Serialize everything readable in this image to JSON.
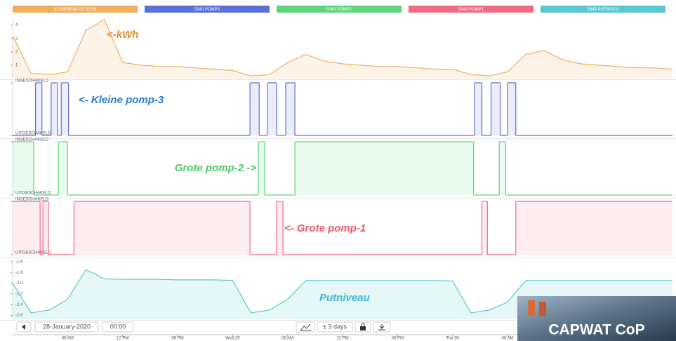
{
  "chart_data": [
    {
      "type": "line",
      "name": "871685900013270256",
      "color": "#f0ad5e",
      "annotation": "<-kWh",
      "annotation_color": "#f08a24",
      "x": [
        0,
        2,
        4,
        6,
        8,
        10,
        12,
        14,
        16,
        18,
        20,
        22,
        24,
        26,
        28,
        30,
        32,
        34,
        36,
        38,
        40,
        42,
        44,
        46,
        48,
        50,
        52,
        54,
        56,
        58,
        60,
        62,
        64,
        66,
        68,
        70,
        72
      ],
      "values": [
        3.2,
        0.4,
        0.3,
        0.5,
        3.6,
        4.4,
        1.2,
        1.0,
        0.9,
        0.9,
        0.8,
        0.7,
        0.6,
        0.2,
        0.3,
        1.2,
        1.8,
        1.3,
        1.1,
        1.0,
        0.9,
        0.9,
        0.8,
        0.7,
        0.7,
        0.3,
        0.2,
        0.5,
        1.8,
        2.1,
        1.4,
        1.1,
        1.0,
        0.9,
        0.8,
        0.8,
        0.7
      ],
      "xlim": [
        0,
        72
      ],
      "ylim": [
        0,
        4.4
      ],
      "yticks": [
        1,
        2,
        3,
        4
      ]
    },
    {
      "type": "step",
      "name": "5043 POMP3",
      "color": "#5b6fd6",
      "annotation": "<- Kleine pomp-3",
      "annotation_color": "#2b7bd6",
      "x": [
        0,
        2.5,
        3.2,
        4.2,
        4.9,
        5.3,
        6.1,
        25.9,
        26.9,
        27.8,
        28.8,
        29.8,
        30.8,
        50.4,
        51.2,
        52.2,
        53.2,
        54.0,
        54.9
      ],
      "values": [
        0,
        1,
        0,
        1,
        0,
        1,
        0,
        1,
        0,
        1,
        0,
        1,
        0,
        1,
        0,
        1,
        0,
        1,
        0
      ],
      "xlim": [
        0,
        72
      ],
      "ylim": [
        0,
        1
      ],
      "yticks": [
        {
          "value": 1,
          "label": "INGESCHAKELD"
        },
        {
          "value": 0,
          "label": "UITGESCHAKELD"
        }
      ]
    },
    {
      "type": "step",
      "name": "5043 POMP2",
      "color": "#5dd67a",
      "annotation": "Grote pomp-2 ->",
      "annotation_color": "#4cc96a",
      "x": [
        0,
        2.3,
        5.0,
        6.0,
        26.8,
        27.5,
        30.8,
        50.3,
        53.1,
        53.8
      ],
      "values": [
        1,
        0,
        1,
        0,
        1,
        0,
        1,
        0,
        1,
        0
      ],
      "xlim": [
        0,
        72
      ],
      "ylim": [
        0,
        1
      ],
      "yticks": [
        {
          "value": 1,
          "label": "INGESCHAKELD"
        },
        {
          "value": 0,
          "label": "UITGESCHAKELD"
        }
      ]
    },
    {
      "type": "step",
      "name": "5043 POMP1",
      "color": "#f06a80",
      "annotation": "<- Grote pomp-1",
      "annotation_color": "#e85a6a",
      "x": [
        0,
        3.0,
        3.3,
        3.9,
        6.7,
        25.9,
        28.8,
        29.5,
        51.2,
        51.8,
        54.9
      ],
      "values": [
        1,
        0,
        1,
        0,
        1,
        0,
        1,
        0,
        1,
        0,
        1
      ],
      "xlim": [
        0,
        72
      ],
      "ylim": [
        0,
        1
      ],
      "yticks": [
        {
          "value": 1,
          "label": "INGESCHAKELD"
        },
        {
          "value": 0,
          "label": "UITGESCHAKELD"
        }
      ]
    },
    {
      "type": "line",
      "name": "5043 PUTNIVO1",
      "color": "#5ac8d0",
      "annotation": "Putniveau",
      "annotation_color": "#3bb5d9",
      "x": [
        0,
        2,
        4,
        6,
        8,
        10,
        12,
        14,
        16,
        18,
        20,
        22,
        24,
        26,
        28,
        30,
        32,
        34,
        36,
        38,
        40,
        42,
        44,
        46,
        48,
        50,
        52,
        54,
        56,
        58,
        60,
        62,
        64,
        66,
        68,
        70,
        72
      ],
      "values": [
        -2.0,
        -2.55,
        -2.5,
        -2.3,
        -1.75,
        -1.92,
        -1.93,
        -1.93,
        -1.93,
        -1.94,
        -1.94,
        -1.94,
        -1.95,
        -2.55,
        -2.5,
        -2.3,
        -1.95,
        -1.95,
        -1.95,
        -1.95,
        -1.95,
        -1.95,
        -1.95,
        -1.95,
        -1.96,
        -2.55,
        -2.5,
        -2.35,
        -1.95,
        -1.95,
        -1.95,
        -1.95,
        -1.95,
        -1.95,
        -1.95,
        -1.95,
        -1.95
      ],
      "xlim": [
        0,
        72
      ],
      "ylim": [
        -2.67,
        -1.55
      ],
      "yticks": [
        -1.6,
        -1.8,
        {
          "value": -2,
          "label": "-2.0"
        },
        -2.2,
        -2.4,
        -2.6
      ],
      "xticks": [
        {
          "value": 6,
          "label": "06 AM"
        },
        {
          "value": 12,
          "label": "12 PM"
        },
        {
          "value": 18,
          "label": "06 PM"
        },
        {
          "value": 24,
          "label": "Wed 29"
        },
        {
          "value": 30,
          "label": "06 AM"
        },
        {
          "value": 36,
          "label": "12 PM"
        },
        {
          "value": 42,
          "label": "06 PM"
        },
        {
          "value": 48,
          "label": "Thu 30"
        },
        {
          "value": 54,
          "label": "06 AM"
        }
      ]
    }
  ],
  "controls": {
    "date": "28-January-2020",
    "time": "00:00",
    "range": "± 3 days"
  },
  "logo": "CAPWAT CoP"
}
